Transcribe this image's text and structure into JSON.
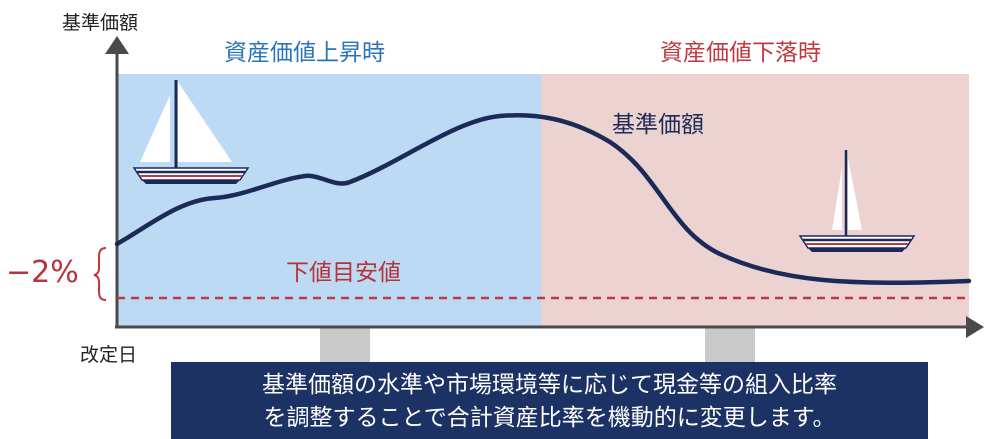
{
  "y_axis_label": "基準価額",
  "x_axis_label": "改定日",
  "regions": {
    "rise_label": "資産価値上昇時",
    "fall_label": "資産価値下落時"
  },
  "series_label": "基準価額",
  "floor": {
    "label": "下値目安値",
    "offset_label": "−2%"
  },
  "caption": {
    "line1": "基準価額の水準や市場環境等に応じて現金等の組入比率",
    "line2": "を調整することで合計資産比率を機動的に変更します。"
  },
  "colors": {
    "rise_bg": "#bcdaf3",
    "fall_bg": "#ecd3d2",
    "line": "#1c2a58",
    "floor": "#c0393f",
    "caption_bg": "#1d3264",
    "axis": "#4a4a4a"
  },
  "icons": [
    "large-sailboat-icon",
    "small-sailboat-icon"
  ]
}
